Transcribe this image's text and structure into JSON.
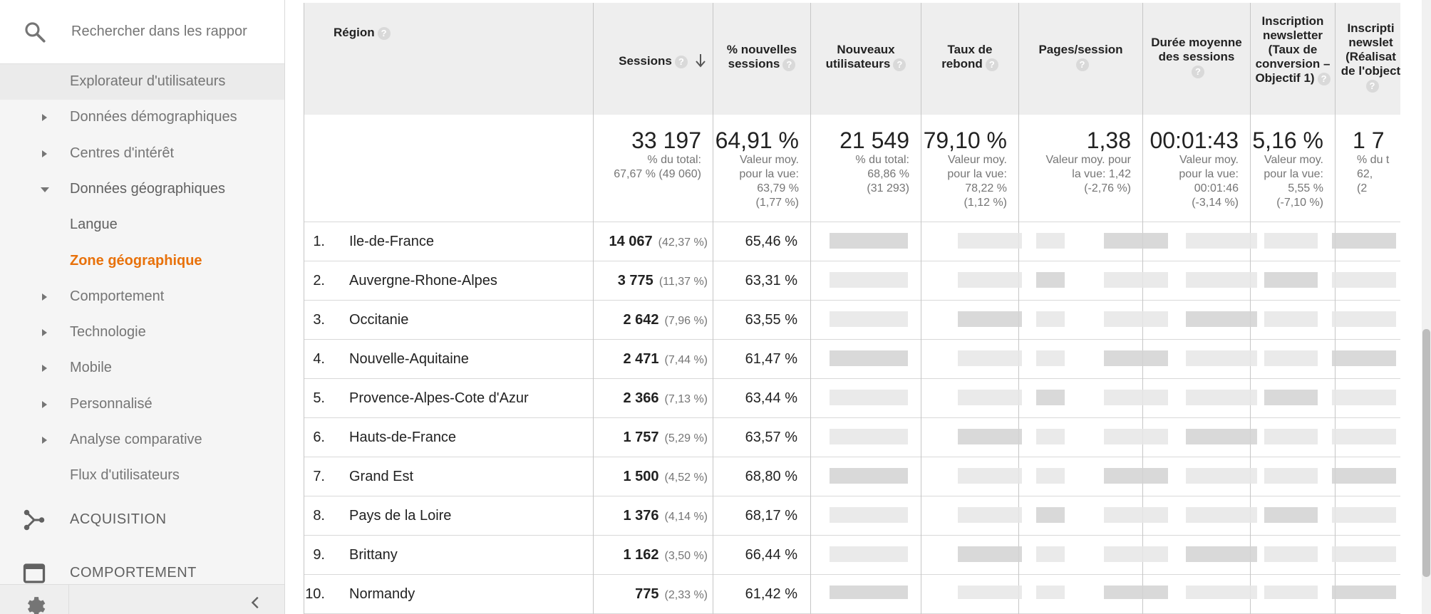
{
  "search": {
    "placeholder": "Rechercher dans les rappor"
  },
  "nav": [
    {
      "label": "Explorateur d'utilisateurs",
      "arrow": "none",
      "state": "highlighted"
    },
    {
      "label": "Données démographiques",
      "arrow": "right",
      "state": "normal"
    },
    {
      "label": "Centres d'intérêt",
      "arrow": "right",
      "state": "normal"
    },
    {
      "label": "Données géographiques",
      "arrow": "down",
      "state": "expanded"
    },
    {
      "label": "Langue",
      "arrow": "none",
      "state": "sub"
    },
    {
      "label": "Zone géographique",
      "arrow": "none",
      "state": "active"
    },
    {
      "label": "Comportement",
      "arrow": "right",
      "state": "normal"
    },
    {
      "label": "Technologie",
      "arrow": "right",
      "state": "normal"
    },
    {
      "label": "Mobile",
      "arrow": "right",
      "state": "normal"
    },
    {
      "label": "Personnalisé",
      "arrow": "right",
      "state": "normal"
    },
    {
      "label": "Analyse comparative",
      "arrow": "right",
      "state": "normal"
    },
    {
      "label": "Flux d'utilisateurs",
      "arrow": "none",
      "state": "normal"
    }
  ],
  "sections": {
    "acquisition": "ACQUISITION",
    "comportement": "COMPORTEMENT"
  },
  "colors": {
    "accent": "#e8710a",
    "header_bg": "#eeeeee",
    "sidebar_bg": "#f5f5f5"
  },
  "table": {
    "headers": {
      "region": "Région",
      "sessions": "Sessions",
      "new_sessions": "% nouvelles sessions",
      "new_users": "Nouveaux utilisateurs",
      "bounce": "Taux de rebond",
      "pages": "Pages/session",
      "duration": "Durée moyenne des sessions",
      "newsletter_rate": "Inscription newsletter (Taux de conversion – Objectif 1)",
      "newsletter_done": "Inscripti newslet (Réalisat de l'object"
    },
    "help_mark": "?",
    "totals": {
      "sessions": {
        "value": "33 197",
        "l1": "% du total:",
        "l2": "67,67 % (49 060)"
      },
      "new_sessions": {
        "value": "64,91 %",
        "l1": "Valeur moy.",
        "l2": "pour la vue:",
        "l3": "63,79 %",
        "l4": "(1,77 %)"
      },
      "new_users": {
        "value": "21 549",
        "l1": "% du total:",
        "l2": "68,86 %",
        "l3": "(31 293)"
      },
      "bounce": {
        "value": "79,10 %",
        "l1": "Valeur moy.",
        "l2": "pour la vue:",
        "l3": "78,22 %",
        "l4": "(1,12 %)"
      },
      "pages": {
        "value": "1,38",
        "l1": "Valeur moy. pour",
        "l2": "la vue: 1,42",
        "l3": "(-2,76 %)"
      },
      "duration": {
        "value": "00:01:43",
        "l1": "Valeur moy.",
        "l2": "pour la vue:",
        "l3": "00:01:46",
        "l4": "(-3,14 %)"
      },
      "newsletter_rate": {
        "value": "5,16 %",
        "l1": "Valeur moy.",
        "l2": "pour la vue:",
        "l3": "5,55 %",
        "l4": "(-7,10 %)"
      },
      "newsletter_done": {
        "value": "1 7",
        "l1": "% du t",
        "l2": "62,",
        "l3": "(2"
      }
    },
    "rows": [
      {
        "num": "1.",
        "region": "Ile-de-France",
        "sessions": "14 067",
        "pct": "(42,37 %)",
        "new_pct": "65,46 %"
      },
      {
        "num": "2.",
        "region": "Auvergne-Rhone-Alpes",
        "sessions": "3 775",
        "pct": "(11,37 %)",
        "new_pct": "63,31 %"
      },
      {
        "num": "3.",
        "region": "Occitanie",
        "sessions": "2 642",
        "pct": "(7,96 %)",
        "new_pct": "63,55 %"
      },
      {
        "num": "4.",
        "region": "Nouvelle-Aquitaine",
        "sessions": "2 471",
        "pct": "(7,44 %)",
        "new_pct": "61,47 %"
      },
      {
        "num": "5.",
        "region": "Provence-Alpes-Cote d'Azur",
        "sessions": "2 366",
        "pct": "(7,13 %)",
        "new_pct": "63,44 %"
      },
      {
        "num": "6.",
        "region": "Hauts-de-France",
        "sessions": "1 757",
        "pct": "(5,29 %)",
        "new_pct": "63,57 %"
      },
      {
        "num": "7.",
        "region": "Grand Est",
        "sessions": "1 500",
        "pct": "(4,52 %)",
        "new_pct": "68,80 %"
      },
      {
        "num": "8.",
        "region": "Pays de la Loire",
        "sessions": "1 376",
        "pct": "(4,14 %)",
        "new_pct": "68,17 %"
      },
      {
        "num": "9.",
        "region": "Brittany",
        "sessions": "1 162",
        "pct": "(3,50 %)",
        "new_pct": "66,44 %"
      },
      {
        "num": "10.",
        "region": "Normandy",
        "sessions": "775",
        "pct": "(2,33 %)",
        "new_pct": "61,42 %"
      }
    ]
  }
}
